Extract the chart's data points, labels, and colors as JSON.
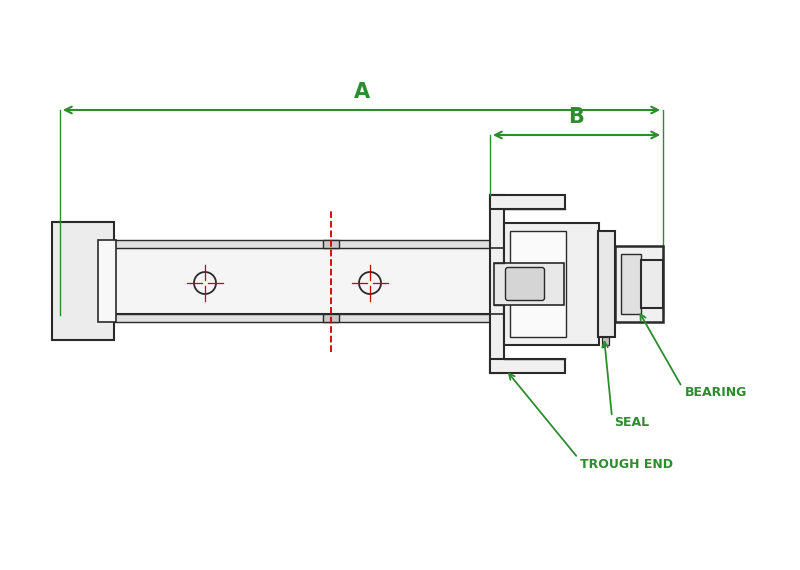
{
  "bg_color": "#ffffff",
  "line_color": "#2a2a2a",
  "dim_color": "#2d8c2d",
  "red_color": "#cc0000",
  "label_A": "A",
  "label_B": "B",
  "label_trough": "TROUGH END",
  "label_seal": "SEAL",
  "label_bearing": "BEARING",
  "fig_width": 8.0,
  "fig_height": 5.7
}
